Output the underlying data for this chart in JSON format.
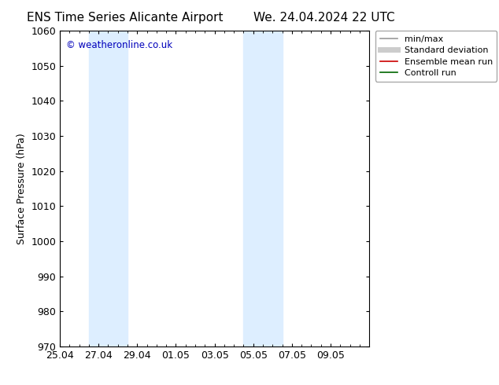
{
  "title_left": "ENS Time Series Alicante Airport",
  "title_right": "We. 24.04.2024 22 UTC",
  "ylabel": "Surface Pressure (hPa)",
  "ylim": [
    970,
    1060
  ],
  "yticks": [
    970,
    980,
    990,
    1000,
    1010,
    1020,
    1030,
    1040,
    1050,
    1060
  ],
  "xtick_labels": [
    "25.04",
    "27.04",
    "29.04",
    "01.05",
    "03.05",
    "05.05",
    "07.05",
    "09.05"
  ],
  "xmin": 0,
  "xmax": 16,
  "xtick_positions": [
    0,
    2,
    4,
    6,
    8,
    10,
    12,
    14
  ],
  "shade_bands": [
    {
      "x_start": 1.5,
      "x_end": 3.5
    },
    {
      "x_start": 9.5,
      "x_end": 11.5
    }
  ],
  "shade_color": "#ddeeff",
  "background_color": "#ffffff",
  "watermark_text": "© weatheronline.co.uk",
  "watermark_color": "#0000bb",
  "legend_items": [
    {
      "label": "min/max",
      "color": "#999999",
      "lw": 1.2,
      "style": "-"
    },
    {
      "label": "Standard deviation",
      "color": "#cccccc",
      "lw": 5,
      "style": "-"
    },
    {
      "label": "Ensemble mean run",
      "color": "#cc0000",
      "lw": 1.2,
      "style": "-"
    },
    {
      "label": "Controll run",
      "color": "#006600",
      "lw": 1.2,
      "style": "-"
    }
  ],
  "title_fontsize": 11,
  "axis_label_fontsize": 9,
  "tick_fontsize": 9,
  "legend_fontsize": 8
}
